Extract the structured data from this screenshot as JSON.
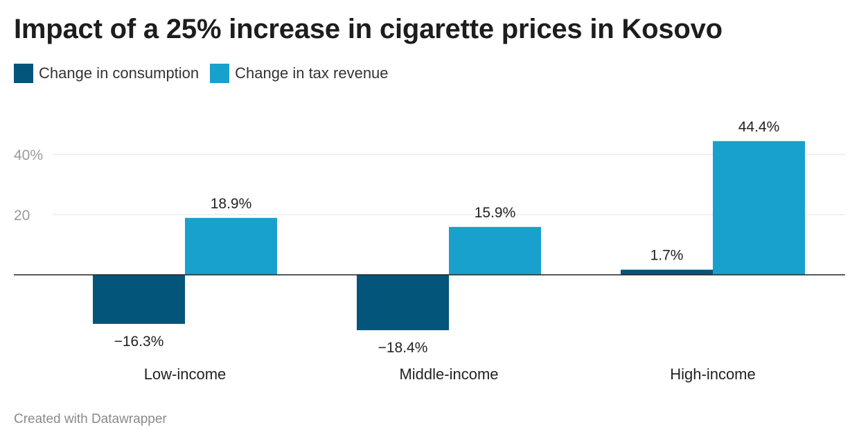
{
  "title": "Impact of a 25% increase in cigarette prices in Kosovo",
  "footer": "Created with Datawrapper",
  "colors": {
    "consumption": "#03557a",
    "tax_revenue": "#18a1cd",
    "grid": "#e1e1e1",
    "baseline": "#222222",
    "tick_label": "#9a9a9a"
  },
  "chart_data": {
    "type": "bar",
    "categories": [
      "Low-income",
      "Middle-income",
      "High-income"
    ],
    "series": [
      {
        "name": "Change in consumption",
        "values": [
          -16.3,
          -18.4,
          1.7
        ],
        "labels": [
          "−16.3%",
          "−18.4%",
          "1.7%"
        ],
        "color": "#03557a"
      },
      {
        "name": "Change in tax revenue",
        "values": [
          18.9,
          15.9,
          44.4
        ],
        "labels": [
          "18.9%",
          "15.9%",
          "44.4%"
        ],
        "color": "#18a1cd"
      }
    ],
    "yticks": [
      {
        "value": 20,
        "label": "20"
      },
      {
        "value": 40,
        "label": "40%"
      }
    ],
    "ylim": [
      -20,
      50
    ],
    "grid": true,
    "legend_position": "top-left"
  }
}
